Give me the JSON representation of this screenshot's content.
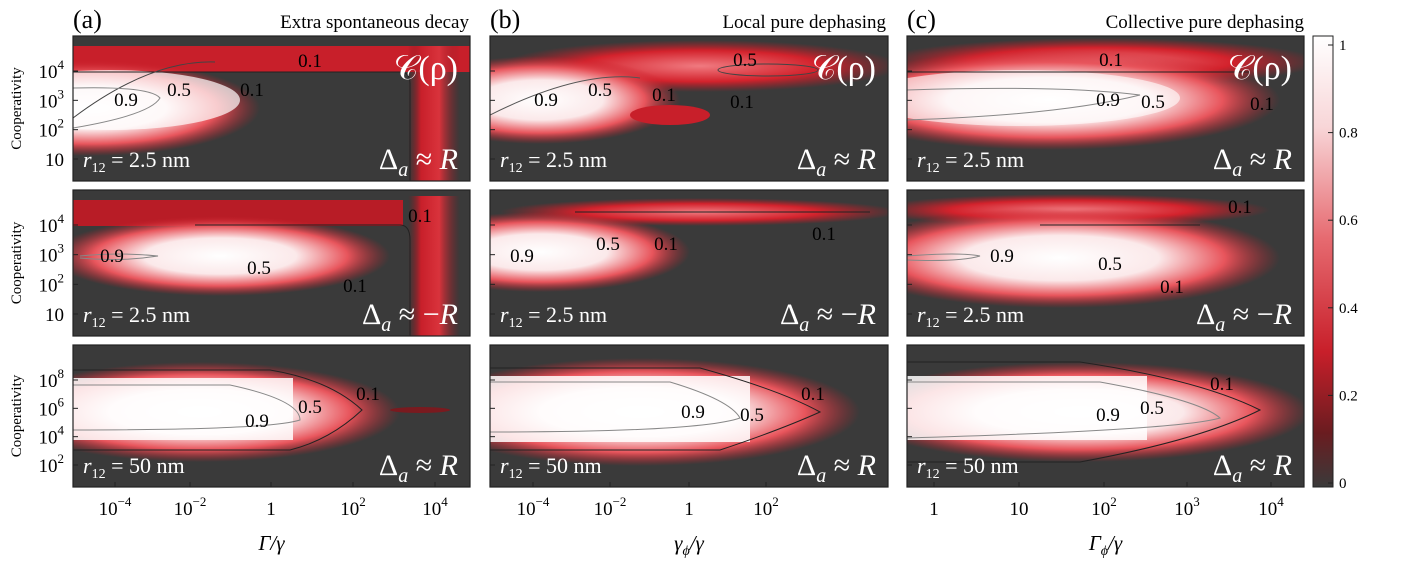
{
  "colorbar": {
    "ticks": [
      "0",
      "0.2",
      "0.4",
      "0.6",
      "0.8",
      "1"
    ],
    "colors": [
      "#3a3a3a",
      "#d11f2a",
      "#ffffff"
    ]
  },
  "columns": [
    {
      "letter": "(a)",
      "title": "Extra spontaneous decay",
      "xlabel_main": "Γ",
      "xlabel_sub": "",
      "xlabel_rest": "/γ",
      "xticks": [
        {
          "m": "10",
          "e": "−4"
        },
        {
          "m": "10",
          "e": "−2"
        },
        {
          "m": "1",
          "e": ""
        },
        {
          "m": "10",
          "e": "2"
        },
        {
          "m": "10",
          "e": "4"
        }
      ]
    },
    {
      "letter": "(b)",
      "title": "Local pure dephasing",
      "xlabel_main": "γ",
      "xlabel_sub": "ϕ",
      "xlabel_rest": "/γ",
      "xticks": [
        {
          "m": "10",
          "e": "−4"
        },
        {
          "m": "10",
          "e": "−2"
        },
        {
          "m": "1",
          "e": ""
        },
        {
          "m": "10",
          "e": "2"
        }
      ]
    },
    {
      "letter": "(c)",
      "title": "Collective pure dephasing",
      "xlabel_main": "Γ",
      "xlabel_sub": "ϕ",
      "xlabel_rest": "/γ",
      "xticks": [
        {
          "m": "1",
          "e": ""
        },
        {
          "m": "10",
          "e": ""
        },
        {
          "m": "10",
          "e": "2"
        },
        {
          "m": "10",
          "e": "3"
        },
        {
          "m": "10",
          "e": "4"
        }
      ]
    }
  ],
  "rows": [
    {
      "ylabel": "Cooperativity",
      "r12": "2.5 nm",
      "delta": "Δ",
      "delta_sub": "a",
      "delta_rel": "≈ R",
      "yticks": [
        {
          "m": "10",
          "e": "4"
        },
        {
          "m": "10",
          "e": "3"
        },
        {
          "m": "10",
          "e": "2"
        },
        {
          "m": "10",
          "e": ""
        }
      ]
    },
    {
      "ylabel": "Cooperativity",
      "r12": "2.5 nm",
      "delta": "Δ",
      "delta_sub": "a",
      "delta_rel": "≈ −R",
      "yticks": [
        {
          "m": "10",
          "e": "4"
        },
        {
          "m": "10",
          "e": "3"
        },
        {
          "m": "10",
          "e": "2"
        },
        {
          "m": "10",
          "e": ""
        }
      ]
    },
    {
      "ylabel": "Cooperativity",
      "r12": "50 nm",
      "delta": "Δ",
      "delta_sub": "a",
      "delta_rel": "≈ R",
      "yticks": [
        {
          "m": "10",
          "e": "8"
        },
        {
          "m": "10",
          "e": "6"
        },
        {
          "m": "10",
          "e": "4"
        },
        {
          "m": "10",
          "e": "2"
        }
      ]
    }
  ],
  "panel_label": {
    "main": "𝒞(ρ)"
  },
  "r12_prefix": "r",
  "r12_sub": "12",
  "contours": {
    "p00": [
      "0.1",
      "0.9",
      "0.5",
      "0.1"
    ],
    "p01": [
      "0.5",
      "0.9",
      "0.5",
      "0.1",
      "0.1"
    ],
    "p02": [
      "0.1",
      "0.9",
      "0.5",
      "0.1"
    ],
    "p10": [
      "0.1",
      "0.9",
      "0.5",
      "0.1"
    ],
    "p11": [
      "0.9",
      "0.5",
      "0.1",
      "0.1"
    ],
    "p12": [
      "0.1",
      "0.9",
      "0.5",
      "0.1"
    ],
    "p20": [
      "0.1",
      "0.9",
      "0.5"
    ],
    "p21": [
      "0.1",
      "0.9",
      "0.5"
    ],
    "p22": [
      "0.1",
      "0.9",
      "0.5"
    ]
  },
  "chart_data": {
    "type": "heatmap",
    "zlabel": "𝒞(ρ)",
    "zlim": [
      0,
      1
    ],
    "contour_levels": [
      0.1,
      0.5,
      0.9
    ],
    "panels": [
      {
        "column": "Extra spontaneous decay",
        "row": "r12 = 2.5 nm, Δa ≈ R"
      },
      {
        "column": "Local pure dephasing",
        "row": "r12 = 2.5 nm, Δa ≈ R"
      },
      {
        "column": "Collective pure dephasing",
        "row": "r12 = 2.5 nm, Δa ≈ R"
      },
      {
        "column": "Extra spontaneous decay",
        "row": "r12 = 2.5 nm, Δa ≈ −R"
      },
      {
        "column": "Local pure dephasing",
        "row": "r12 = 2.5 nm, Δa ≈ −R"
      },
      {
        "column": "Collective pure dephasing",
        "row": "r12 = 2.5 nm, Δa ≈ −R"
      },
      {
        "column": "Extra spontaneous decay",
        "row": "r12 = 50 nm, Δa ≈ R"
      },
      {
        "column": "Local pure dephasing",
        "row": "r12 = 50 nm, Δa ≈ R"
      },
      {
        "column": "Collective pure dephasing",
        "row": "r12 = 50 nm, Δa ≈ R"
      }
    ]
  }
}
